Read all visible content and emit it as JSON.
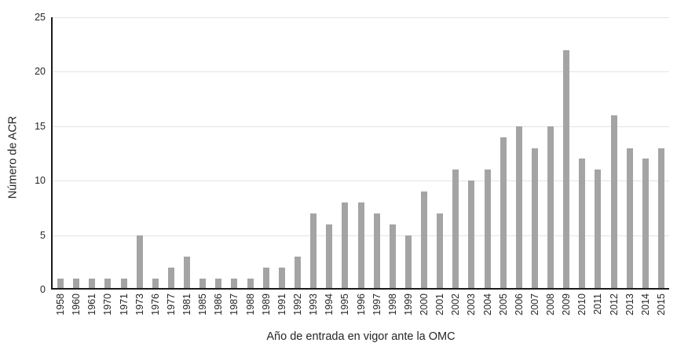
{
  "chart_data": {
    "type": "bar",
    "title": "",
    "xlabel": "Año de entrada en vigor ante la OMC",
    "ylabel": "Número de ACR",
    "categories": [
      "1958",
      "1960",
      "1961",
      "1970",
      "1971",
      "1973",
      "1976",
      "1977",
      "1981",
      "1985",
      "1986",
      "1987",
      "1988",
      "1989",
      "1991",
      "1992",
      "1993",
      "1994",
      "1995",
      "1996",
      "1997",
      "1998",
      "1999",
      "2000",
      "2001",
      "2002",
      "2003",
      "2004",
      "2005",
      "2006",
      "2007",
      "2008",
      "2009",
      "2010",
      "2011",
      "2012",
      "2013",
      "2014",
      "2015"
    ],
    "values": [
      1,
      1,
      1,
      1,
      1,
      5,
      1,
      2,
      3,
      1,
      1,
      1,
      1,
      2,
      2,
      3,
      7,
      6,
      8,
      8,
      7,
      6,
      5,
      9,
      7,
      11,
      10,
      11,
      14,
      15,
      13,
      15,
      22,
      12,
      11,
      16,
      13,
      12,
      13
    ],
    "ylim": [
      0,
      25
    ],
    "yticks": [
      0,
      5,
      10,
      15,
      20,
      25
    ],
    "grid": true,
    "legend_position": "none",
    "bar_color": "#a4a4a4",
    "grid_color": "#e4e4e4",
    "axis_color": "#1a1a1a",
    "text_color": "#262626"
  }
}
